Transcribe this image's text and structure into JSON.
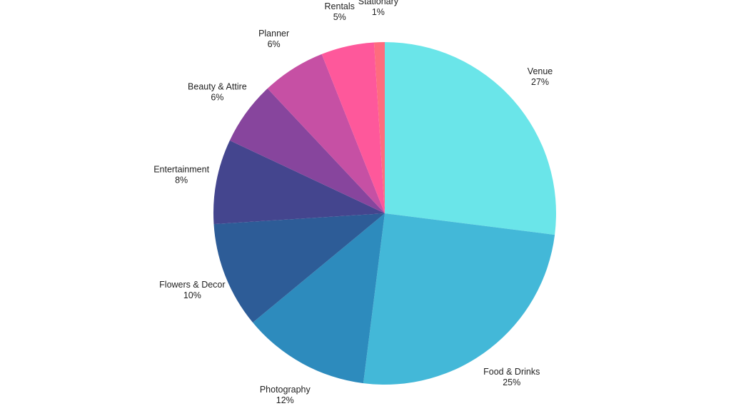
{
  "chart_data": {
    "type": "pie",
    "title": "",
    "start_angle_deg": 0,
    "direction": "clockwise",
    "slices": [
      {
        "label": "Venue",
        "value": 27,
        "pct_label": "27%",
        "color": "#6ae5e9"
      },
      {
        "label": "Food & Drinks",
        "value": 25,
        "pct_label": "25%",
        "color": "#43b8d8"
      },
      {
        "label": "Photography",
        "value": 12,
        "pct_label": "12%",
        "color": "#2d8bbd"
      },
      {
        "label": "Flowers & Decor",
        "value": 10,
        "pct_label": "10%",
        "color": "#2d5c97"
      },
      {
        "label": "Entertainment",
        "value": 8,
        "pct_label": "8%",
        "color": "#44458e"
      },
      {
        "label": "Beauty & Attire",
        "value": 6,
        "pct_label": "6%",
        "color": "#87459d"
      },
      {
        "label": "Planner",
        "value": 6,
        "pct_label": "6%",
        "color": "#c650a4"
      },
      {
        "label": "Rentals",
        "value": 5,
        "pct_label": "5%",
        "color": "#fe589b"
      },
      {
        "label": "Stationary",
        "value": 1,
        "pct_label": "1%",
        "color": "#fe6c7e"
      }
    ]
  }
}
